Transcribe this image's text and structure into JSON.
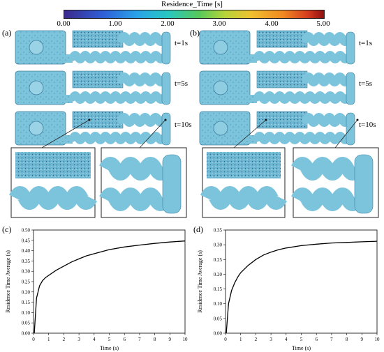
{
  "colorbar": {
    "title": "Residence_Time [s]",
    "ticks": [
      "0.00",
      "1.00",
      "2.00",
      "3.00",
      "4.00",
      "5.00"
    ]
  },
  "panels": {
    "a": "(a)",
    "b": "(b)",
    "c": "(c)",
    "d": "(d)"
  },
  "time_labels": [
    "t=1s",
    "t=5s",
    "t=10s"
  ],
  "colors": {
    "fluid": "#7cc3dc",
    "fluid_dark": "#4f9cbc",
    "fluid_edge": "#3d7f9e"
  },
  "chart_data": [
    {
      "type": "line",
      "title": "",
      "xlabel": "Time (s)",
      "ylabel": "Residence Time Average (s)",
      "xlim": [
        0,
        10
      ],
      "ylim": [
        0,
        0.5
      ],
      "xticks": [
        "0",
        "1",
        "2",
        "3",
        "4",
        "5",
        "6",
        "7",
        "8",
        "9",
        "10"
      ],
      "yticks": [
        "0.00",
        "0.05",
        "0.10",
        "0.15",
        "0.20",
        "0.25",
        "0.30",
        "0.35",
        "0.40",
        "0.45",
        "0.50"
      ],
      "x": [
        0.05,
        0.2,
        0.4,
        0.6,
        0.8,
        1,
        1.5,
        2,
        2.5,
        3,
        3.5,
        4,
        5,
        6,
        7,
        8,
        9,
        10
      ],
      "y": [
        0.0,
        0.17,
        0.23,
        0.255,
        0.27,
        0.28,
        0.305,
        0.325,
        0.345,
        0.36,
        0.375,
        0.385,
        0.405,
        0.418,
        0.427,
        0.435,
        0.442,
        0.447
      ]
    },
    {
      "type": "line",
      "title": "",
      "xlabel": "Time (s)",
      "ylabel": "Residence Time Average (s)",
      "xlim": [
        0,
        10
      ],
      "ylim": [
        0,
        0.35
      ],
      "xticks": [
        "0",
        "1",
        "2",
        "3",
        "4",
        "5",
        "6",
        "7",
        "8",
        "9",
        "10"
      ],
      "yticks": [
        "0.00",
        "0.05",
        "0.10",
        "0.15",
        "0.20",
        "0.25",
        "0.30",
        "0.35"
      ],
      "x": [
        0.05,
        0.2,
        0.4,
        0.6,
        0.8,
        1,
        1.5,
        2,
        2.5,
        3,
        3.5,
        4,
        5,
        6,
        7,
        8,
        9,
        10
      ],
      "y": [
        0.0,
        0.1,
        0.145,
        0.17,
        0.19,
        0.205,
        0.23,
        0.25,
        0.265,
        0.275,
        0.283,
        0.289,
        0.297,
        0.302,
        0.306,
        0.308,
        0.31,
        0.312
      ]
    }
  ]
}
